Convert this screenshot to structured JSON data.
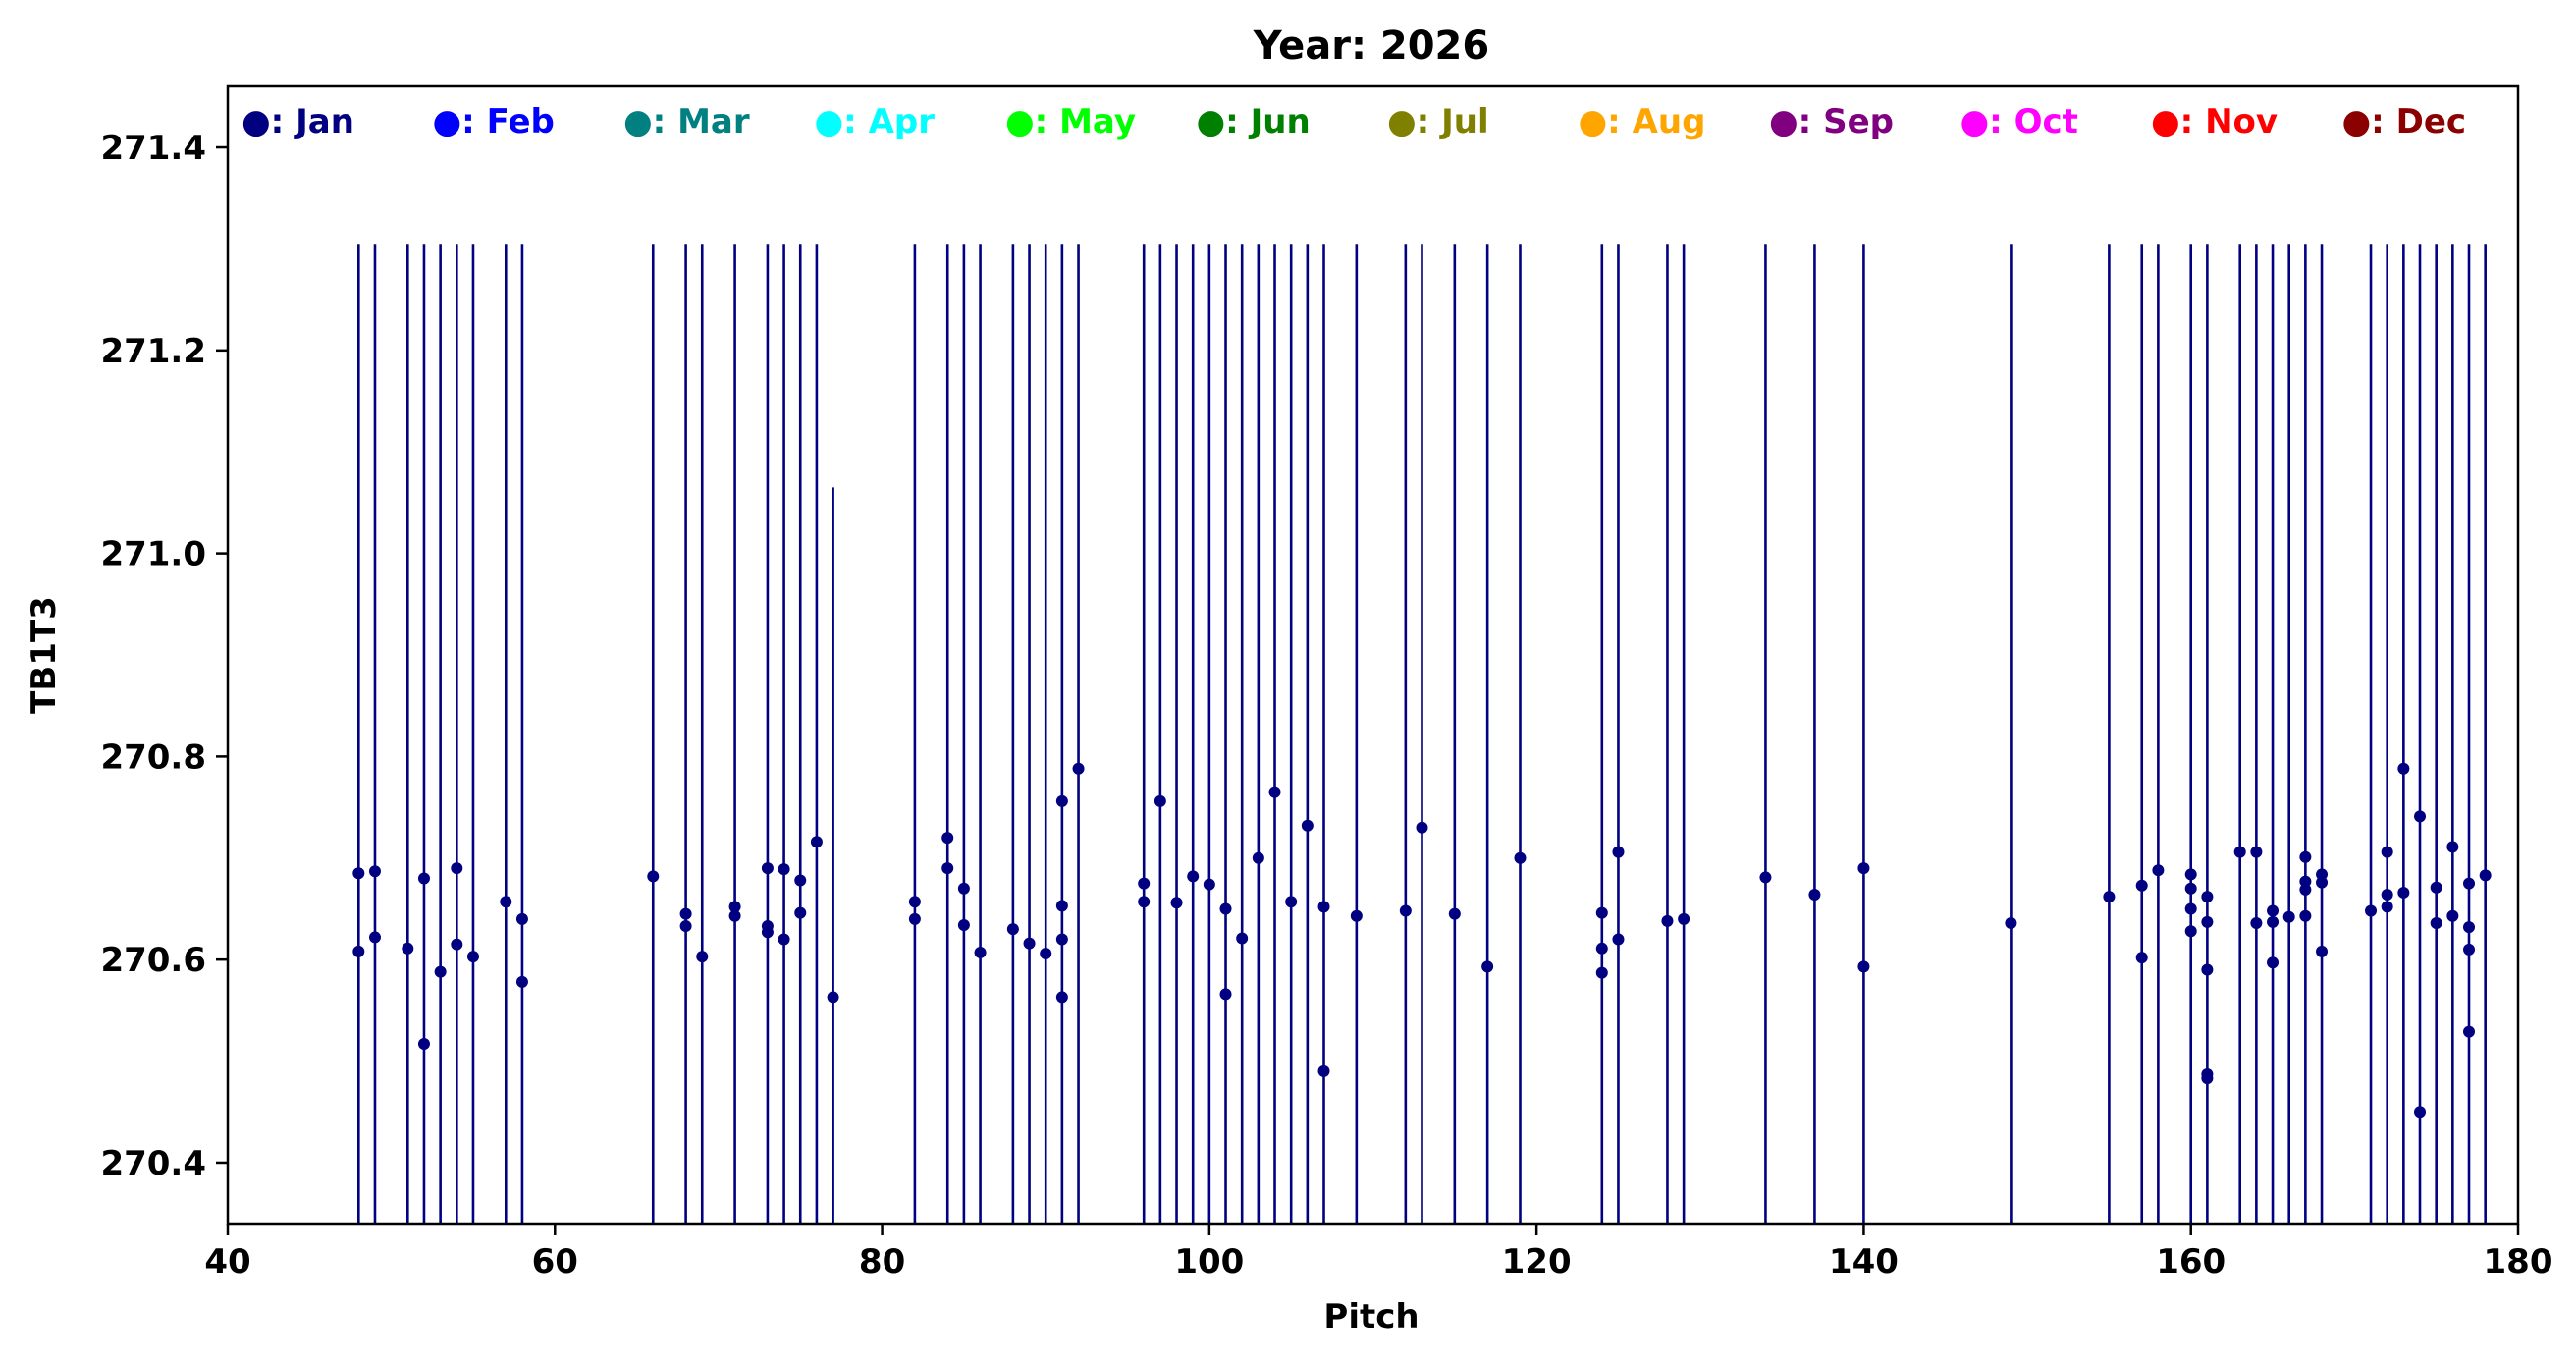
{
  "chart_data": {
    "type": "scatter",
    "title": "Year: 2026",
    "xlabel": "Pitch",
    "ylabel": "TB1T3",
    "xlim": [
      40,
      180
    ],
    "ylim": [
      270.34,
      271.46
    ],
    "xticks": [
      40,
      60,
      80,
      100,
      120,
      140,
      160,
      180
    ],
    "yticks": [
      270.4,
      270.6,
      270.8,
      271.0,
      271.2,
      271.4
    ],
    "xtick_labels": [
      "40",
      "60",
      "80",
      "100",
      "120",
      "140",
      "160",
      "180"
    ],
    "ytick_labels": [
      "270.4",
      "270.6",
      "270.8",
      "271.0",
      "271.2",
      "271.4"
    ],
    "grid": false,
    "legend_position": "top",
    "legend": [
      {
        "label": "●: Jan",
        "color": "#000080"
      },
      {
        "label": "●: Feb",
        "color": "#0000ff"
      },
      {
        "label": "●: Mar",
        "color": "#008080"
      },
      {
        "label": "●: Apr",
        "color": "#00ffff"
      },
      {
        "label": "●: May",
        "color": "#00ff00"
      },
      {
        "label": "●: Jun",
        "color": "#008000"
      },
      {
        "label": "●: Jul",
        "color": "#808000"
      },
      {
        "label": "●: Aug",
        "color": "#ffa500"
      },
      {
        "label": "●: Sep",
        "color": "#800080"
      },
      {
        "label": "●: Oct",
        "color": "#ff00ff"
      },
      {
        "label": "●: Nov",
        "color": "#ff0000"
      },
      {
        "label": "●: Dec",
        "color": "#8b0000"
      }
    ],
    "series": [
      {
        "color": "#000080",
        "points": [
          [
            48,
            270.685
          ],
          [
            48,
            270.608
          ],
          [
            49,
            270.687
          ],
          [
            49,
            270.622
          ],
          [
            51,
            270.611
          ],
          [
            52,
            270.68
          ],
          [
            52,
            270.517
          ],
          [
            53,
            270.588
          ],
          [
            54,
            270.69
          ],
          [
            54,
            270.615
          ],
          [
            55,
            270.603
          ],
          [
            57,
            270.657
          ],
          [
            58,
            270.64
          ],
          [
            58,
            270.578
          ],
          [
            66,
            270.682
          ],
          [
            68,
            270.645
          ],
          [
            68,
            270.633
          ],
          [
            69,
            270.603
          ],
          [
            71,
            270.652
          ],
          [
            71,
            270.643
          ],
          [
            73,
            270.69
          ],
          [
            73,
            270.633
          ],
          [
            73,
            270.627
          ],
          [
            74,
            270.689
          ],
          [
            74,
            270.62
          ],
          [
            75,
            270.678
          ],
          [
            75,
            270.646
          ],
          [
            76,
            270.716
          ],
          [
            77,
            270.563
          ],
          [
            82,
            270.657
          ],
          [
            82,
            270.64
          ],
          [
            84,
            270.72
          ],
          [
            84,
            270.69
          ],
          [
            85,
            270.67
          ],
          [
            85,
            270.634
          ],
          [
            86,
            270.607
          ],
          [
            88,
            270.63
          ],
          [
            89,
            270.616
          ],
          [
            90,
            270.606
          ],
          [
            91,
            270.756
          ],
          [
            91,
            270.653
          ],
          [
            91,
            270.62
          ],
          [
            91,
            270.563
          ],
          [
            92,
            270.788
          ],
          [
            96,
            270.675
          ],
          [
            96,
            270.657
          ],
          [
            97,
            270.756
          ],
          [
            98,
            270.656
          ],
          [
            99,
            270.682
          ],
          [
            100,
            270.674
          ],
          [
            101,
            270.65
          ],
          [
            101,
            270.566
          ],
          [
            102,
            270.621
          ],
          [
            103,
            270.7
          ],
          [
            104,
            270.765
          ],
          [
            105,
            270.657
          ],
          [
            106,
            270.732
          ],
          [
            107,
            270.652
          ],
          [
            107,
            270.49
          ],
          [
            109,
            270.643
          ],
          [
            112,
            270.648
          ],
          [
            113,
            270.73
          ],
          [
            115,
            270.645
          ],
          [
            117,
            270.593
          ],
          [
            119,
            270.7
          ],
          [
            124,
            270.646
          ],
          [
            124,
            270.611
          ],
          [
            124,
            270.587
          ],
          [
            125,
            270.706
          ],
          [
            125,
            270.62
          ],
          [
            128,
            270.638
          ],
          [
            129,
            270.64
          ],
          [
            134,
            270.681
          ],
          [
            137,
            270.664
          ],
          [
            140,
            270.69
          ],
          [
            140,
            270.593
          ],
          [
            149,
            270.636
          ],
          [
            155,
            270.662
          ],
          [
            157,
            270.673
          ],
          [
            157,
            270.602
          ],
          [
            158,
            270.688
          ],
          [
            160,
            270.684
          ],
          [
            160,
            270.67
          ],
          [
            160,
            270.65
          ],
          [
            160,
            270.628
          ],
          [
            161,
            270.662
          ],
          [
            161,
            270.637
          ],
          [
            161,
            270.59
          ],
          [
            161,
            270.487
          ],
          [
            161,
            270.483
          ],
          [
            163,
            270.706
          ],
          [
            164,
            270.706
          ],
          [
            164,
            270.636
          ],
          [
            165,
            270.648
          ],
          [
            165,
            270.637
          ],
          [
            165,
            270.597
          ],
          [
            166,
            270.642
          ],
          [
            167,
            270.701
          ],
          [
            167,
            270.677
          ],
          [
            167,
            270.669
          ],
          [
            167,
            270.643
          ],
          [
            168,
            270.684
          ],
          [
            168,
            270.676
          ],
          [
            168,
            270.608
          ],
          [
            171,
            270.648
          ],
          [
            172,
            270.706
          ],
          [
            172,
            270.664
          ],
          [
            172,
            270.652
          ],
          [
            173,
            270.788
          ],
          [
            173,
            270.666
          ],
          [
            174,
            270.741
          ],
          [
            174,
            270.45
          ],
          [
            175,
            270.671
          ],
          [
            175,
            270.636
          ],
          [
            176,
            270.711
          ],
          [
            176,
            270.643
          ],
          [
            177,
            270.675
          ],
          [
            177,
            270.632
          ],
          [
            177,
            270.61
          ],
          [
            177,
            270.529
          ],
          [
            178,
            270.683
          ]
        ]
      }
    ],
    "stems": {
      "color": "#000080",
      "tops": [
        [
          48,
          271.305
        ],
        [
          49,
          271.305
        ],
        [
          51,
          271.305
        ],
        [
          52,
          271.305
        ],
        [
          53,
          271.305
        ],
        [
          54,
          271.305
        ],
        [
          55,
          271.305
        ],
        [
          57,
          271.305
        ],
        [
          58,
          271.305
        ],
        [
          66,
          271.305
        ],
        [
          68,
          271.305
        ],
        [
          69,
          271.305
        ],
        [
          71,
          271.305
        ],
        [
          73,
          271.305
        ],
        [
          74,
          271.305
        ],
        [
          75,
          271.305
        ],
        [
          76,
          271.305
        ],
        [
          77,
          271.065
        ],
        [
          82,
          271.305
        ],
        [
          84,
          271.305
        ],
        [
          85,
          271.305
        ],
        [
          86,
          271.305
        ],
        [
          88,
          271.305
        ],
        [
          89,
          271.305
        ],
        [
          90,
          271.305
        ],
        [
          91,
          271.305
        ],
        [
          92,
          271.305
        ],
        [
          96,
          271.305
        ],
        [
          97,
          271.305
        ],
        [
          98,
          271.305
        ],
        [
          99,
          271.305
        ],
        [
          100,
          271.305
        ],
        [
          101,
          271.305
        ],
        [
          102,
          271.305
        ],
        [
          103,
          271.305
        ],
        [
          104,
          271.305
        ],
        [
          105,
          271.305
        ],
        [
          106,
          271.305
        ],
        [
          107,
          271.305
        ],
        [
          109,
          271.305
        ],
        [
          112,
          271.305
        ],
        [
          113,
          271.305
        ],
        [
          115,
          271.305
        ],
        [
          117,
          271.305
        ],
        [
          119,
          271.305
        ],
        [
          124,
          271.305
        ],
        [
          125,
          271.305
        ],
        [
          128,
          271.305
        ],
        [
          129,
          271.305
        ],
        [
          134,
          271.305
        ],
        [
          137,
          271.305
        ],
        [
          140,
          271.305
        ],
        [
          149,
          271.305
        ],
        [
          155,
          271.305
        ],
        [
          157,
          271.305
        ],
        [
          158,
          271.305
        ],
        [
          160,
          271.305
        ],
        [
          161,
          271.305
        ],
        [
          163,
          271.305
        ],
        [
          164,
          271.305
        ],
        [
          165,
          271.305
        ],
        [
          166,
          271.305
        ],
        [
          167,
          271.305
        ],
        [
          168,
          271.305
        ],
        [
          171,
          271.305
        ],
        [
          172,
          271.305
        ],
        [
          173,
          271.305
        ],
        [
          174,
          271.305
        ],
        [
          175,
          271.305
        ],
        [
          176,
          271.305
        ],
        [
          177,
          271.305
        ],
        [
          178,
          271.305
        ]
      ]
    }
  }
}
